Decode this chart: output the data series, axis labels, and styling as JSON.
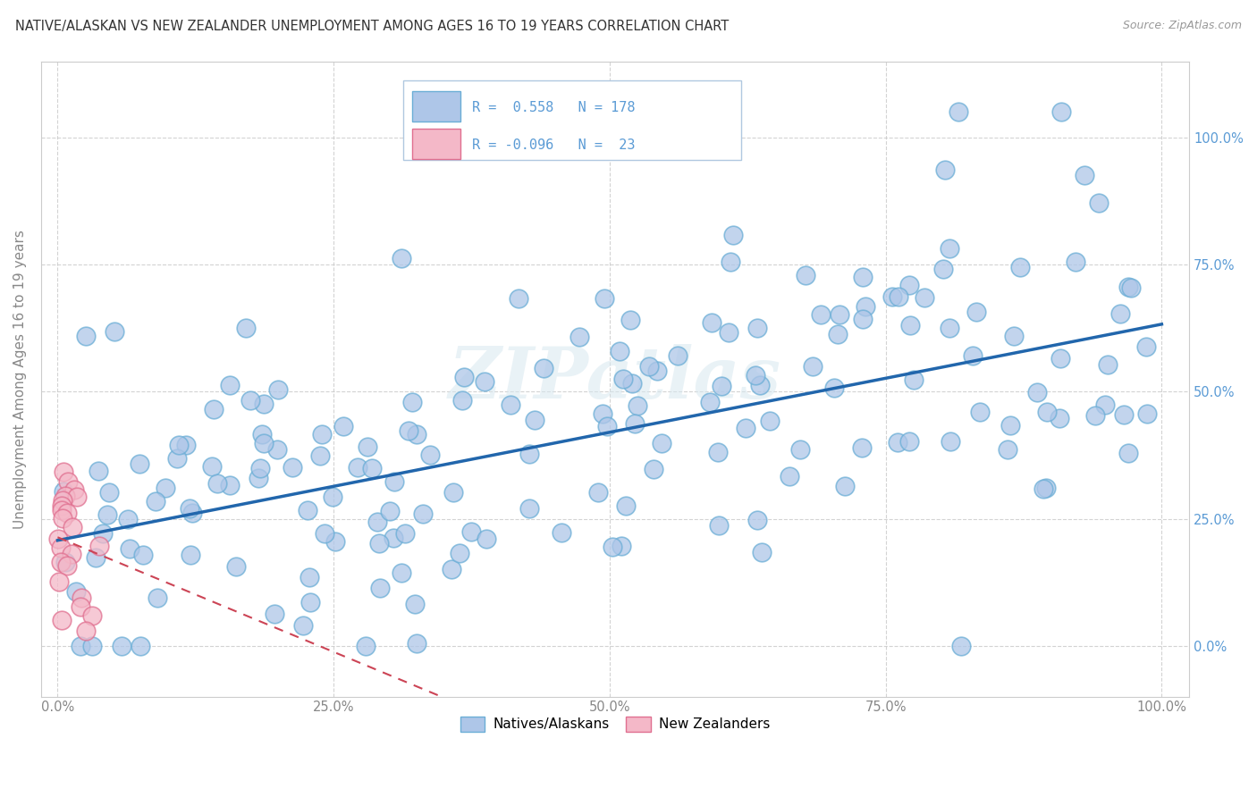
{
  "title": "NATIVE/ALASKAN VS NEW ZEALANDER UNEMPLOYMENT AMONG AGES 16 TO 19 YEARS CORRELATION CHART",
  "source": "Source: ZipAtlas.com",
  "ylabel": "Unemployment Among Ages 16 to 19 years",
  "blue_color": "#aec6e8",
  "blue_edge_color": "#6baed6",
  "pink_color": "#f4b8c8",
  "pink_edge_color": "#e07090",
  "trend_blue_color": "#2166ac",
  "trend_pink_color": "#cc4455",
  "r_blue": 0.558,
  "n_blue": 178,
  "r_pink": -0.096,
  "n_pink": 23,
  "watermark": "ZIPatlas",
  "background_color": "#ffffff",
  "grid_color": "#c8c8c8",
  "label_color": "#5b9bd5",
  "axis_text_color": "#888888"
}
